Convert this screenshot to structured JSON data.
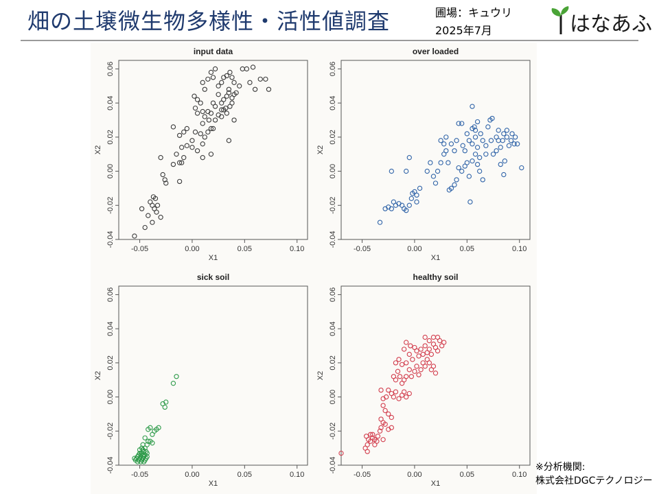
{
  "header": {
    "title": "畑の土壌微生物多様性・活性値調査",
    "field_label": "圃場：キュウリ",
    "date_label": "2025年7月",
    "logo_text": "はなあふ"
  },
  "footnote": {
    "line1": "※分析機関:",
    "line2": "株式会社DGCテクノロジー"
  },
  "colors": {
    "title": "#1f3a6e",
    "input": "#3a3a3a",
    "over_loaded": "#2f63a8",
    "sick": "#2e9b4a",
    "healthy": "#d23c4c",
    "logo_leaf": "#4aa336"
  },
  "chart_data": [
    {
      "type": "scatter",
      "title": "input data",
      "xlabel": "X1",
      "ylabel": "X2",
      "xlim": [
        -0.07,
        0.11
      ],
      "ylim": [
        -0.04,
        0.065
      ],
      "xticks": [
        "-0.05",
        "0.00",
        "0.05",
        "0.10"
      ],
      "yticks": [
        "-0.04",
        "-0.02",
        "0.00",
        "0.02",
        "0.04",
        "0.06"
      ],
      "color": "#3a3a3a",
      "points": [
        [
          -0.055,
          -0.038
        ],
        [
          -0.045,
          -0.033
        ],
        [
          -0.048,
          -0.022
        ],
        [
          -0.042,
          -0.026
        ],
        [
          -0.04,
          -0.018
        ],
        [
          -0.038,
          -0.02
        ],
        [
          -0.036,
          -0.022
        ],
        [
          -0.035,
          -0.016
        ],
        [
          -0.037,
          -0.015
        ],
        [
          -0.033,
          -0.02
        ],
        [
          -0.034,
          -0.024
        ],
        [
          -0.03,
          -0.027
        ],
        [
          -0.038,
          -0.03
        ],
        [
          -0.028,
          -0.002
        ],
        [
          -0.026,
          -0.005
        ],
        [
          -0.025,
          -0.007
        ],
        [
          -0.03,
          0.008
        ],
        [
          -0.018,
          0.004
        ],
        [
          -0.012,
          -0.006
        ],
        [
          -0.015,
          0.01
        ],
        [
          -0.012,
          0.005
        ],
        [
          -0.01,
          0.005
        ],
        [
          -0.008,
          0.008
        ],
        [
          -0.018,
          0.026
        ],
        [
          -0.012,
          0.021
        ],
        [
          -0.008,
          0.023
        ],
        [
          -0.005,
          0.025
        ],
        [
          -0.01,
          0.014
        ],
        [
          -0.005,
          0.015
        ],
        [
          0.0,
          0.014
        ],
        [
          0.0,
          0.018
        ],
        [
          0.005,
          0.012
        ],
        [
          0.01,
          0.008
        ],
        [
          0.012,
          0.02
        ],
        [
          0.003,
          0.023
        ],
        [
          0.008,
          0.022
        ],
        [
          0.015,
          0.023
        ],
        [
          0.018,
          0.025
        ],
        [
          0.02,
          0.025
        ],
        [
          0.018,
          0.01
        ],
        [
          0.01,
          0.016
        ],
        [
          0.003,
          0.037
        ],
        [
          0.005,
          0.034
        ],
        [
          0.002,
          0.044
        ],
        [
          0.005,
          0.042
        ],
        [
          0.008,
          0.04
        ],
        [
          0.01,
          0.035
        ],
        [
          0.012,
          0.032
        ],
        [
          0.015,
          0.035
        ],
        [
          0.018,
          0.034
        ],
        [
          0.02,
          0.04
        ],
        [
          0.022,
          0.038
        ],
        [
          0.025,
          0.033
        ],
        [
          0.028,
          0.036
        ],
        [
          0.028,
          0.04
        ],
        [
          0.03,
          0.042
        ],
        [
          0.03,
          0.036
        ],
        [
          0.032,
          0.037
        ],
        [
          0.033,
          0.034
        ],
        [
          0.033,
          0.044
        ],
        [
          0.035,
          0.046
        ],
        [
          0.036,
          0.038
        ],
        [
          0.038,
          0.04
        ],
        [
          0.038,
          0.043
        ],
        [
          0.04,
          0.045
        ],
        [
          0.035,
          0.048
        ],
        [
          0.01,
          0.052
        ],
        [
          0.012,
          0.048
        ],
        [
          0.015,
          0.054
        ],
        [
          0.018,
          0.058
        ],
        [
          0.02,
          0.055
        ],
        [
          0.022,
          0.06
        ],
        [
          0.025,
          0.05
        ],
        [
          0.025,
          0.045
        ],
        [
          0.028,
          0.052
        ],
        [
          0.03,
          0.055
        ],
        [
          0.033,
          0.056
        ],
        [
          0.036,
          0.058
        ],
        [
          0.038,
          0.055
        ],
        [
          0.04,
          0.052
        ],
        [
          0.042,
          0.046
        ],
        [
          0.045,
          0.05
        ],
        [
          0.048,
          0.06
        ],
        [
          0.052,
          0.06
        ],
        [
          0.058,
          0.061
        ],
        [
          0.055,
          0.052
        ],
        [
          0.06,
          0.048
        ],
        [
          0.065,
          0.054
        ],
        [
          0.07,
          0.054
        ],
        [
          0.073,
          0.048
        ],
        [
          0.01,
          0.028
        ],
        [
          0.016,
          0.03
        ],
        [
          0.022,
          0.03
        ],
        [
          0.028,
          0.032
        ],
        [
          0.035,
          0.018
        ],
        [
          0.04,
          0.03
        ]
      ]
    },
    {
      "type": "scatter",
      "title": "over loaded",
      "xlabel": "X1",
      "ylabel": "X2",
      "xlim": [
        -0.07,
        0.11
      ],
      "ylim": [
        -0.04,
        0.065
      ],
      "xticks": [
        "-0.05",
        "0.00",
        "0.05",
        "0.10"
      ],
      "yticks": [
        "-0.04",
        "-0.02",
        "0.00",
        "0.02",
        "0.04",
        "0.06"
      ],
      "color": "#2f63a8",
      "points": [
        [
          -0.033,
          -0.03
        ],
        [
          -0.028,
          -0.022
        ],
        [
          -0.025,
          -0.021
        ],
        [
          -0.022,
          -0.022
        ],
        [
          -0.02,
          -0.018
        ],
        [
          -0.018,
          -0.02
        ],
        [
          -0.015,
          -0.019
        ],
        [
          -0.012,
          -0.02
        ],
        [
          -0.01,
          -0.022
        ],
        [
          -0.008,
          -0.023
        ],
        [
          -0.005,
          -0.02
        ],
        [
          -0.003,
          -0.016
        ],
        [
          -0.022,
          0.0
        ],
        [
          -0.008,
          0.0
        ],
        [
          -0.005,
          0.008
        ],
        [
          0.0,
          -0.012
        ],
        [
          0.002,
          -0.014
        ],
        [
          0.005,
          -0.01
        ],
        [
          0.002,
          -0.018
        ],
        [
          -0.002,
          -0.013
        ],
        [
          0.012,
          0.0
        ],
        [
          0.015,
          0.005
        ],
        [
          0.018,
          -0.003
        ],
        [
          0.02,
          -0.007
        ],
        [
          0.022,
          0.0
        ],
        [
          0.025,
          0.005
        ],
        [
          0.028,
          0.01
        ],
        [
          0.03,
          0.012
        ],
        [
          0.032,
          0.005
        ],
        [
          0.033,
          -0.011
        ],
        [
          0.035,
          -0.01
        ],
        [
          0.038,
          -0.008
        ],
        [
          0.04,
          -0.005
        ],
        [
          0.042,
          0.002
        ],
        [
          0.045,
          0.0
        ],
        [
          0.048,
          0.003
        ],
        [
          0.05,
          0.005
        ],
        [
          0.052,
          -0.003
        ],
        [
          0.053,
          -0.018
        ],
        [
          0.055,
          0.006
        ],
        [
          0.058,
          0.01
        ],
        [
          0.06,
          0.004
        ],
        [
          0.062,
          0.0
        ],
        [
          0.065,
          -0.005
        ],
        [
          0.068,
          0.01
        ],
        [
          0.025,
          0.018
        ],
        [
          0.028,
          0.016
        ],
        [
          0.03,
          0.02
        ],
        [
          0.035,
          0.016
        ],
        [
          0.038,
          0.012
        ],
        [
          0.04,
          0.018
        ],
        [
          0.042,
          0.028
        ],
        [
          0.045,
          0.028
        ],
        [
          0.046,
          0.015
        ],
        [
          0.048,
          0.012
        ],
        [
          0.05,
          0.022
        ],
        [
          0.052,
          0.018
        ],
        [
          0.055,
          0.016
        ],
        [
          0.055,
          0.025
        ],
        [
          0.057,
          0.026
        ],
        [
          0.058,
          0.02
        ],
        [
          0.06,
          0.014
        ],
        [
          0.062,
          0.008
        ],
        [
          0.063,
          0.022
        ],
        [
          0.065,
          0.018
        ],
        [
          0.068,
          0.015
        ],
        [
          0.07,
          0.026
        ],
        [
          0.072,
          0.03
        ],
        [
          0.073,
          0.018
        ],
        [
          0.075,
          0.01
        ],
        [
          0.078,
          0.02
        ],
        [
          0.08,
          0.018
        ],
        [
          0.08,
          0.024
        ],
        [
          0.082,
          0.014
        ],
        [
          0.084,
          0.018
        ],
        [
          0.085,
          0.022
        ],
        [
          0.086,
          0.006
        ],
        [
          0.088,
          0.02
        ],
        [
          0.09,
          0.015
        ],
        [
          0.092,
          0.018
        ],
        [
          0.093,
          0.022
        ],
        [
          0.095,
          0.016
        ],
        [
          0.096,
          0.02
        ],
        [
          0.098,
          0.016
        ],
        [
          0.102,
          0.002
        ],
        [
          0.055,
          0.038
        ],
        [
          0.058,
          0.024
        ],
        [
          0.06,
          0.029
        ],
        [
          0.074,
          0.031
        ],
        [
          0.088,
          0.024
        ],
        [
          0.085,
          -0.002
        ],
        [
          0.082,
          0.004
        ],
        [
          0.078,
          0.012
        ]
      ]
    },
    {
      "type": "scatter",
      "title": "sick soil",
      "xlabel": "X1",
      "ylabel": "X2",
      "xlim": [
        -0.07,
        0.11
      ],
      "ylim": [
        -0.04,
        0.065
      ],
      "xticks": [
        "-0.05",
        "0.00",
        "0.05",
        "0.10"
      ],
      "yticks": [
        "-0.04",
        "-0.02",
        "0.00",
        "0.02",
        "0.04",
        "0.06"
      ],
      "color": "#2e9b4a",
      "points": [
        [
          -0.015,
          0.012
        ],
        [
          -0.018,
          0.008
        ],
        [
          -0.025,
          -0.003
        ],
        [
          -0.028,
          -0.004
        ],
        [
          -0.026,
          -0.006
        ],
        [
          -0.032,
          -0.018
        ],
        [
          -0.034,
          -0.019
        ],
        [
          -0.036,
          -0.02
        ],
        [
          -0.04,
          -0.018
        ],
        [
          -0.042,
          -0.019
        ],
        [
          -0.038,
          -0.022
        ],
        [
          -0.04,
          -0.026
        ],
        [
          -0.042,
          -0.026
        ],
        [
          -0.038,
          -0.027
        ],
        [
          -0.045,
          -0.024
        ],
        [
          -0.043,
          -0.028
        ],
        [
          -0.045,
          -0.03
        ],
        [
          -0.047,
          -0.028
        ],
        [
          -0.048,
          -0.03
        ],
        [
          -0.05,
          -0.031
        ],
        [
          -0.046,
          -0.032
        ],
        [
          -0.044,
          -0.032
        ],
        [
          -0.048,
          -0.033
        ],
        [
          -0.045,
          -0.034
        ],
        [
          -0.047,
          -0.034
        ],
        [
          -0.049,
          -0.034
        ],
        [
          -0.051,
          -0.034
        ],
        [
          -0.043,
          -0.035
        ],
        [
          -0.046,
          -0.035
        ],
        [
          -0.049,
          -0.035
        ],
        [
          -0.052,
          -0.035
        ],
        [
          -0.044,
          -0.036
        ],
        [
          -0.047,
          -0.036
        ],
        [
          -0.05,
          -0.036
        ],
        [
          -0.053,
          -0.036
        ],
        [
          -0.045,
          -0.037
        ],
        [
          -0.048,
          -0.037
        ],
        [
          -0.051,
          -0.037
        ],
        [
          -0.054,
          -0.037
        ],
        [
          -0.046,
          -0.038
        ],
        [
          -0.049,
          -0.038
        ],
        [
          -0.052,
          -0.038
        ],
        [
          -0.043,
          -0.033
        ],
        [
          -0.05,
          -0.033
        ],
        [
          -0.055,
          -0.036
        ],
        [
          -0.047,
          -0.031
        ]
      ]
    },
    {
      "type": "scatter",
      "title": "healthy soil",
      "xlabel": "X1",
      "ylabel": "X2",
      "xlim": [
        -0.07,
        0.11
      ],
      "ylim": [
        -0.04,
        0.065
      ],
      "xticks": [
        "-0.05",
        "0.00",
        "0.05",
        "0.10"
      ],
      "yticks": [
        "-0.04",
        "-0.02",
        "0.00",
        "0.02",
        "0.04",
        "0.06"
      ],
      "color": "#d23c4c",
      "points": [
        [
          -0.07,
          -0.033
        ],
        [
          -0.045,
          -0.032
        ],
        [
          -0.047,
          -0.03
        ],
        [
          -0.045,
          -0.028
        ],
        [
          -0.044,
          -0.025
        ],
        [
          -0.046,
          -0.023
        ],
        [
          -0.042,
          -0.022
        ],
        [
          -0.042,
          -0.026
        ],
        [
          -0.04,
          -0.024
        ],
        [
          -0.04,
          -0.022
        ],
        [
          -0.038,
          -0.025
        ],
        [
          -0.038,
          -0.028
        ],
        [
          -0.036,
          -0.026
        ],
        [
          -0.035,
          -0.023
        ],
        [
          -0.033,
          -0.02
        ],
        [
          -0.032,
          -0.018
        ],
        [
          -0.03,
          -0.015
        ],
        [
          -0.032,
          -0.013
        ],
        [
          -0.028,
          -0.016
        ],
        [
          -0.025,
          -0.019
        ],
        [
          -0.022,
          -0.018
        ],
        [
          -0.03,
          -0.025
        ],
        [
          -0.03,
          -0.005
        ],
        [
          -0.028,
          -0.008
        ],
        [
          -0.025,
          -0.01
        ],
        [
          -0.022,
          -0.012
        ],
        [
          -0.032,
          0.004
        ],
        [
          -0.03,
          -0.001
        ],
        [
          -0.027,
          0.0
        ],
        [
          -0.025,
          0.004
        ],
        [
          -0.022,
          0.002
        ],
        [
          -0.02,
          0.0
        ],
        [
          -0.018,
          0.003
        ],
        [
          -0.015,
          -0.001
        ],
        [
          -0.012,
          0.001
        ],
        [
          -0.01,
          0.003
        ],
        [
          -0.008,
          0.0
        ],
        [
          -0.005,
          0.002
        ],
        [
          -0.02,
          0.012
        ],
        [
          -0.018,
          0.01
        ],
        [
          -0.016,
          0.015
        ],
        [
          -0.014,
          0.012
        ],
        [
          -0.012,
          0.008
        ],
        [
          -0.01,
          0.01
        ],
        [
          -0.008,
          0.012
        ],
        [
          -0.005,
          0.016
        ],
        [
          -0.003,
          0.012
        ],
        [
          0.0,
          0.015
        ],
        [
          0.002,
          0.018
        ],
        [
          0.004,
          0.013
        ],
        [
          0.006,
          0.016
        ],
        [
          0.008,
          0.02
        ],
        [
          0.01,
          0.018
        ],
        [
          0.012,
          0.022
        ],
        [
          0.014,
          0.02
        ],
        [
          0.016,
          0.016
        ],
        [
          0.018,
          0.018
        ],
        [
          0.02,
          0.014
        ],
        [
          -0.018,
          0.02
        ],
        [
          -0.015,
          0.022
        ],
        [
          -0.012,
          0.019
        ],
        [
          -0.008,
          0.02
        ],
        [
          -0.005,
          0.025
        ],
        [
          -0.002,
          0.022
        ],
        [
          0.0,
          0.029
        ],
        [
          0.002,
          0.027
        ],
        [
          0.004,
          0.024
        ],
        [
          0.006,
          0.028
        ],
        [
          0.008,
          0.025
        ],
        [
          0.01,
          0.03
        ],
        [
          0.012,
          0.026
        ],
        [
          0.014,
          0.028
        ],
        [
          0.016,
          0.025
        ],
        [
          0.018,
          0.031
        ],
        [
          0.02,
          0.029
        ],
        [
          0.022,
          0.027
        ],
        [
          0.024,
          0.033
        ],
        [
          0.026,
          0.03
        ],
        [
          0.01,
          0.035
        ],
        [
          0.014,
          0.033
        ],
        [
          0.018,
          0.035
        ],
        [
          0.022,
          0.035
        ],
        [
          0.028,
          0.032
        ],
        [
          -0.004,
          0.03
        ],
        [
          -0.008,
          0.032
        ],
        [
          -0.01,
          0.028
        ]
      ]
    }
  ]
}
